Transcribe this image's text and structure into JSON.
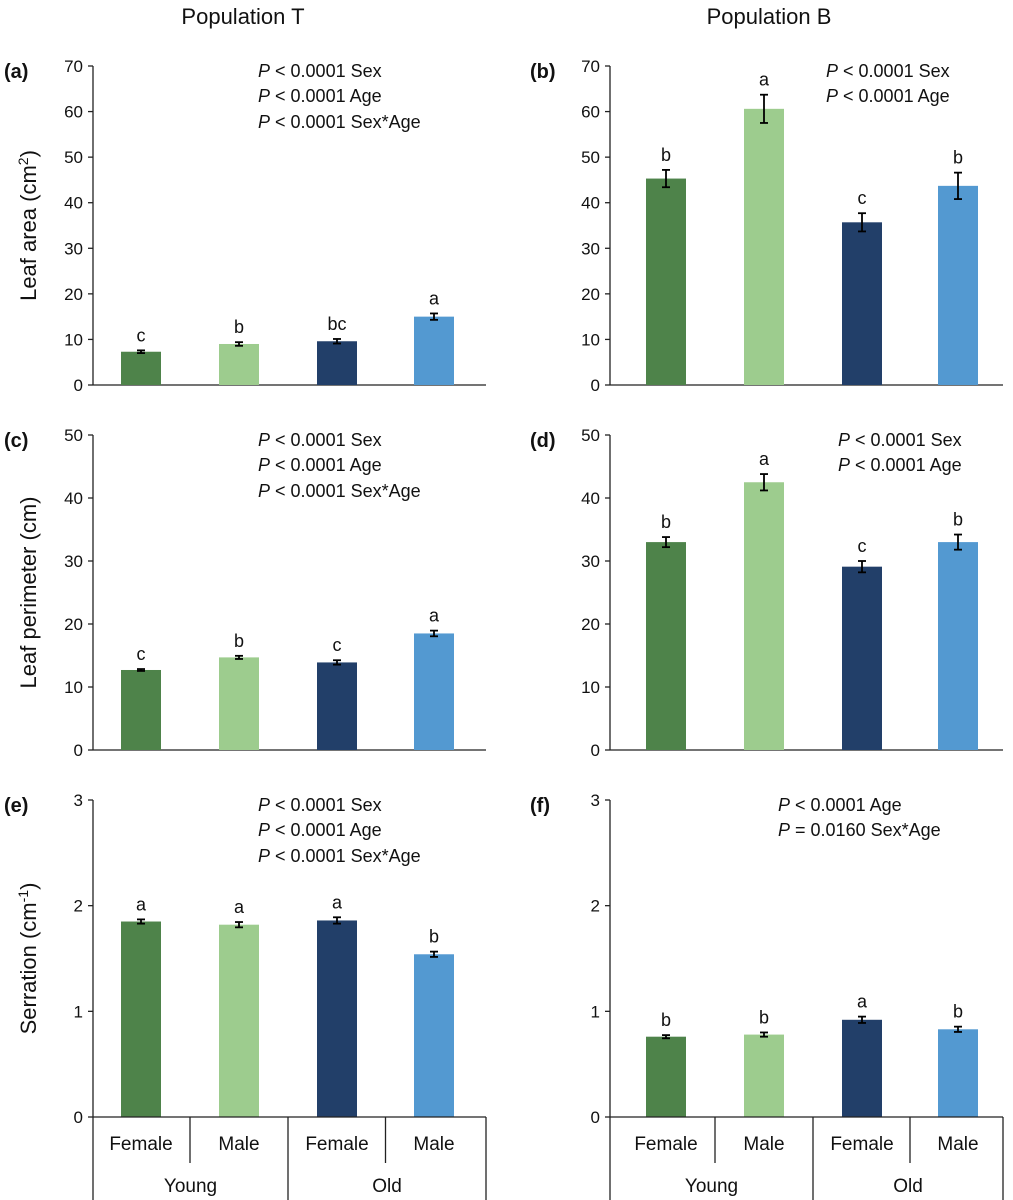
{
  "figure": {
    "column_titles": [
      "Population T",
      "Population B"
    ],
    "x_categories": [
      "Female",
      "Male",
      "Female",
      "Male"
    ],
    "x_groups": [
      "Young",
      "Old"
    ],
    "p_italic": "P",
    "colors": [
      "#4e834a",
      "#9dcc8e",
      "#223f69",
      "#5399d1"
    ]
  },
  "chart_data": [
    {
      "id": "a",
      "label": "(a)",
      "type": "bar",
      "population": "Population T",
      "ylabel": "Leaf area (cm",
      "ylabel_sup": "2",
      "ylabel_end": ")",
      "ylim": [
        0,
        70
      ],
      "yticks": [
        0,
        10,
        20,
        30,
        40,
        50,
        60,
        70
      ],
      "categories": [
        "Young Female",
        "Young Male",
        "Old Female",
        "Old Male"
      ],
      "values": [
        7.3,
        9.0,
        9.6,
        15.0
      ],
      "errors": [
        0.3,
        0.4,
        0.5,
        0.7
      ],
      "letters": [
        "c",
        "b",
        "bc",
        "a"
      ],
      "stats": [
        " < 0.0001 Sex",
        " < 0.0001 Age",
        " < 0.0001 Sex*Age"
      ]
    },
    {
      "id": "b",
      "label": "(b)",
      "type": "bar",
      "population": "Population B",
      "ylim": [
        0,
        70
      ],
      "yticks": [
        0,
        10,
        20,
        30,
        40,
        50,
        60,
        70
      ],
      "categories": [
        "Young Female",
        "Young Male",
        "Old Female",
        "Old Male"
      ],
      "values": [
        45.3,
        60.6,
        35.7,
        43.7
      ],
      "errors": [
        1.9,
        3.1,
        2.0,
        2.9
      ],
      "letters": [
        "b",
        "a",
        "c",
        "b"
      ],
      "stats": [
        " < 0.0001 Sex",
        " < 0.0001 Age"
      ]
    },
    {
      "id": "c",
      "label": "(c)",
      "type": "bar",
      "population": "Population T",
      "ylabel": "Leaf perimeter (cm)",
      "ylim": [
        0,
        50
      ],
      "yticks": [
        0,
        10,
        20,
        30,
        40,
        50
      ],
      "categories": [
        "Young Female",
        "Young Male",
        "Old Female",
        "Old Male"
      ],
      "values": [
        12.7,
        14.7,
        13.9,
        18.5
      ],
      "errors": [
        0.15,
        0.25,
        0.35,
        0.45
      ],
      "letters": [
        "c",
        "b",
        "c",
        "a"
      ],
      "stats": [
        " < 0.0001 Sex",
        " < 0.0001 Age",
        " < 0.0001 Sex*Age"
      ]
    },
    {
      "id": "d",
      "label": "(d)",
      "type": "bar",
      "population": "Population B",
      "ylim": [
        0,
        50
      ],
      "yticks": [
        0,
        10,
        20,
        30,
        40,
        50
      ],
      "categories": [
        "Young Female",
        "Young Male",
        "Old Female",
        "Old Male"
      ],
      "values": [
        33.0,
        42.5,
        29.1,
        33.0
      ],
      "errors": [
        0.8,
        1.3,
        0.9,
        1.2
      ],
      "letters": [
        "b",
        "a",
        "c",
        "b"
      ],
      "stats": [
        " < 0.0001 Sex",
        " < 0.0001 Age"
      ]
    },
    {
      "id": "e",
      "label": "(e)",
      "type": "bar",
      "population": "Population T",
      "ylabel": "Serration (cm",
      "ylabel_sup": "-1",
      "ylabel_end": ")",
      "ylim": [
        0,
        3
      ],
      "yticks": [
        0,
        1,
        2,
        3
      ],
      "categories": [
        "Young Female",
        "Young Male",
        "Old Female",
        "Old Male"
      ],
      "values": [
        1.85,
        1.82,
        1.86,
        1.54
      ],
      "errors": [
        0.02,
        0.025,
        0.03,
        0.025
      ],
      "letters": [
        "a",
        "a",
        "a",
        "b"
      ],
      "stats": [
        " < 0.0001 Sex",
        " < 0.0001 Age",
        " < 0.0001 Sex*Age"
      ]
    },
    {
      "id": "f",
      "label": "(f)",
      "type": "bar",
      "population": "Population B",
      "ylim": [
        0,
        3
      ],
      "yticks": [
        0,
        1,
        2,
        3
      ],
      "categories": [
        "Young Female",
        "Young Male",
        "Old Female",
        "Old Male"
      ],
      "values": [
        0.76,
        0.78,
        0.92,
        0.83
      ],
      "errors": [
        0.015,
        0.02,
        0.03,
        0.025
      ],
      "letters": [
        "b",
        "b",
        "a",
        "b"
      ],
      "stats": [
        " < 0.0001 Age",
        " = 0.0160 Sex*Age"
      ]
    }
  ]
}
